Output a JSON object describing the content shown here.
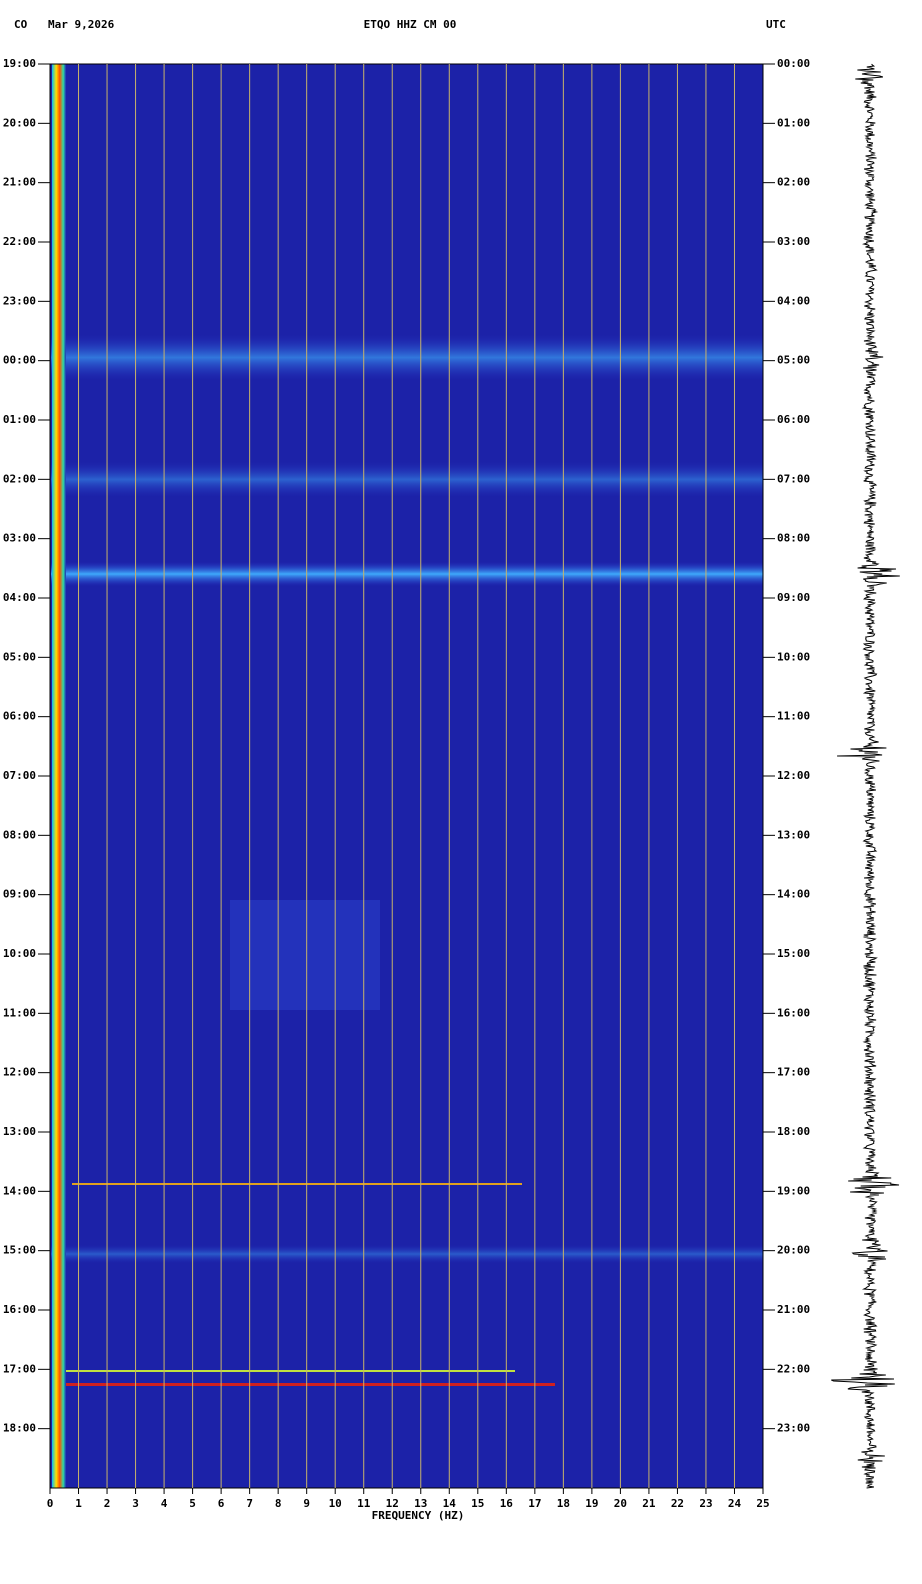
{
  "chart_data": {
    "type": "spectrogram",
    "network": "CO",
    "date": "Mar 9,2026",
    "title": "ETQO HHZ CM 00",
    "timezone": "UTC",
    "xlabel": "FREQUENCY (HZ)",
    "xlim": [
      0,
      25
    ],
    "xticks": [
      0,
      1,
      2,
      3,
      4,
      5,
      6,
      7,
      8,
      9,
      10,
      11,
      12,
      13,
      14,
      15,
      16,
      17,
      18,
      19,
      20,
      21,
      22,
      23,
      24,
      25
    ],
    "grid": true,
    "grid_color": "#c8b46a",
    "ylim": [
      0,
      24
    ],
    "yticks": [
      {
        "value": 0,
        "label": "19:00"
      },
      {
        "value": 1,
        "label": "20:00"
      },
      {
        "value": 2,
        "label": "21:00"
      },
      {
        "value": 3,
        "label": "22:00"
      },
      {
        "value": 4,
        "label": "23:00"
      },
      {
        "value": 5,
        "label": "00:00"
      },
      {
        "value": 6,
        "label": "01:00"
      },
      {
        "value": 7,
        "label": "02:00"
      },
      {
        "value": 8,
        "label": "03:00"
      },
      {
        "value": 9,
        "label": "04:00"
      },
      {
        "value": 10,
        "label": "05:00"
      },
      {
        "value": 11,
        "label": "06:00"
      },
      {
        "value": 12,
        "label": "07:00"
      },
      {
        "value": 13,
        "label": "08:00"
      },
      {
        "value": 14,
        "label": "09:00"
      },
      {
        "value": 15,
        "label": "10:00"
      },
      {
        "value": 16,
        "label": "11:00"
      },
      {
        "value": 17,
        "label": "12:00"
      },
      {
        "value": 18,
        "label": "13:00"
      },
      {
        "value": 19,
        "label": "14:00"
      },
      {
        "value": 20,
        "label": "15:00"
      },
      {
        "value": 21,
        "label": "16:00"
      },
      {
        "value": 22,
        "label": "17:00"
      },
      {
        "value": 23,
        "label": "18:00"
      }
    ],
    "y2lim": [
      0,
      24
    ],
    "y2ticks": [
      {
        "value": 0,
        "label": "00:00"
      },
      {
        "value": 1,
        "label": "01:00"
      },
      {
        "value": 2,
        "label": "02:00"
      },
      {
        "value": 3,
        "label": "03:00"
      },
      {
        "value": 4,
        "label": "04:00"
      },
      {
        "value": 5,
        "label": "05:00"
      },
      {
        "value": 6,
        "label": "06:00"
      },
      {
        "value": 7,
        "label": "07:00"
      },
      {
        "value": 8,
        "label": "08:00"
      },
      {
        "value": 9,
        "label": "09:00"
      },
      {
        "value": 10,
        "label": "10:00"
      },
      {
        "value": 11,
        "label": "11:00"
      },
      {
        "value": 12,
        "label": "12:00"
      },
      {
        "value": 13,
        "label": "13:00"
      },
      {
        "value": 14,
        "label": "14:00"
      },
      {
        "value": 15,
        "label": "15:00"
      },
      {
        "value": 16,
        "label": "16:00"
      },
      {
        "value": 17,
        "label": "17:00"
      },
      {
        "value": 18,
        "label": "18:00"
      },
      {
        "value": 19,
        "label": "19:00"
      },
      {
        "value": 20,
        "label": "20:00"
      },
      {
        "value": 21,
        "label": "21:00"
      },
      {
        "value": 22,
        "label": "22:00"
      },
      {
        "value": 23,
        "label": "23:00"
      }
    ]
  }
}
